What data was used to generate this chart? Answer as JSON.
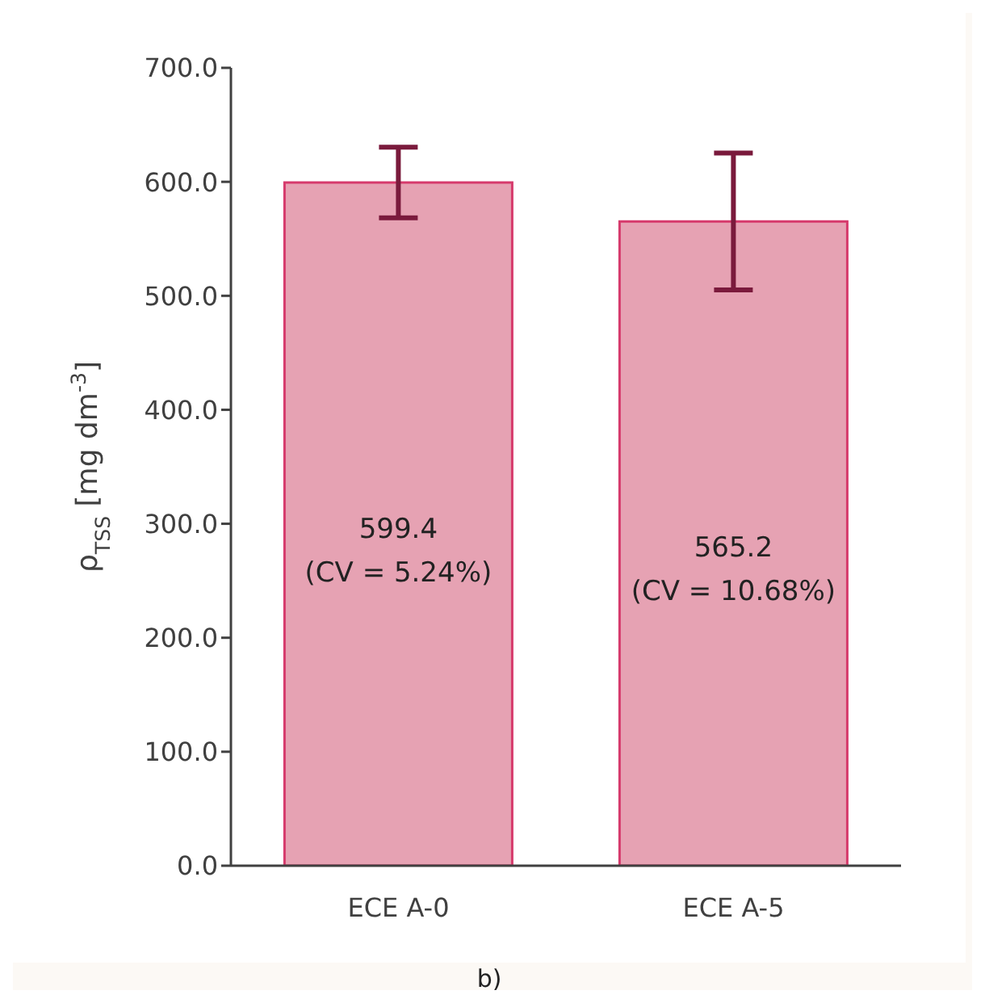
{
  "chart_data": {
    "type": "bar",
    "ylabel": "ρ$_{TSS}$ [mg dm$^{-3}$]",
    "categories": [
      "ECE A-0",
      "ECE A-5"
    ],
    "values": [
      599.4,
      565.2
    ],
    "errors": [
      31,
      60
    ],
    "color": "#e6a2b3",
    "value_labels": [
      "599.4\n(CV = 5.24%)",
      "565.2\n(CV = 10.68%)"
    ],
    "ylim": [
      0,
      700
    ],
    "yticks": [
      {
        "value": 0,
        "label": "0.0"
      },
      {
        "value": 100,
        "label": "100.0"
      },
      {
        "value": 200,
        "label": "200.0"
      },
      {
        "value": 300,
        "label": "300.0"
      },
      {
        "value": 400,
        "label": "400.0"
      },
      {
        "value": 500,
        "label": "500.0"
      },
      {
        "value": 600,
        "label": "600.0"
      },
      {
        "value": 700,
        "label": "700.0"
      }
    ],
    "grid": false,
    "legend": false,
    "annotations": [
      "b)"
    ]
  }
}
